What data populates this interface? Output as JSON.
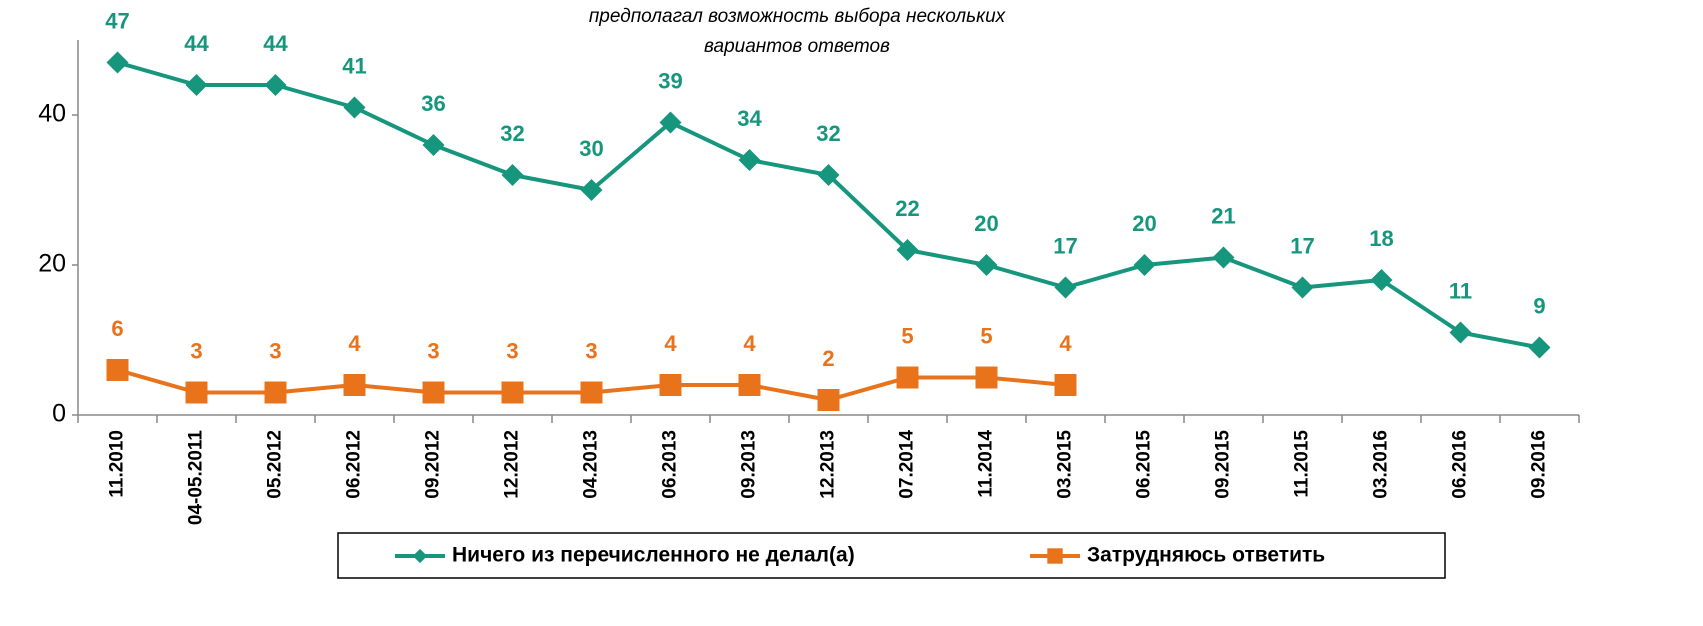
{
  "chart_data": {
    "type": "line",
    "note": [
      "предполагал возможность выбора нескольких",
      "вариантов ответов"
    ],
    "categories": [
      "11.2010",
      "04-05.2011",
      "05.2012",
      "06.2012",
      "09.2012",
      "12.2012",
      "04.2013",
      "06.2013",
      "09.2013",
      "12.2013",
      "07.2014",
      "11.2014",
      "03.2015",
      "06.2015",
      "09.2015",
      "11.2015",
      "03.2016",
      "06.2016",
      "09.2016"
    ],
    "series": [
      {
        "name": "Ничего из перечисленного не делал(а)",
        "color": "#17967e",
        "marker": "diamond",
        "values": [
          47,
          44,
          44,
          41,
          36,
          32,
          30,
          39,
          34,
          32,
          22,
          20,
          17,
          20,
          21,
          17,
          18,
          11,
          9
        ]
      },
      {
        "name": "Затрудняюсь ответить",
        "color": "#e8731a",
        "marker": "square",
        "values": [
          6,
          3,
          3,
          4,
          3,
          3,
          3,
          4,
          4,
          2,
          5,
          5,
          4,
          null,
          null,
          null,
          null,
          null,
          null
        ]
      }
    ],
    "ylim": [
      0,
      50
    ],
    "yticks": [
      0,
      20,
      40
    ],
    "legend": "bottom"
  }
}
